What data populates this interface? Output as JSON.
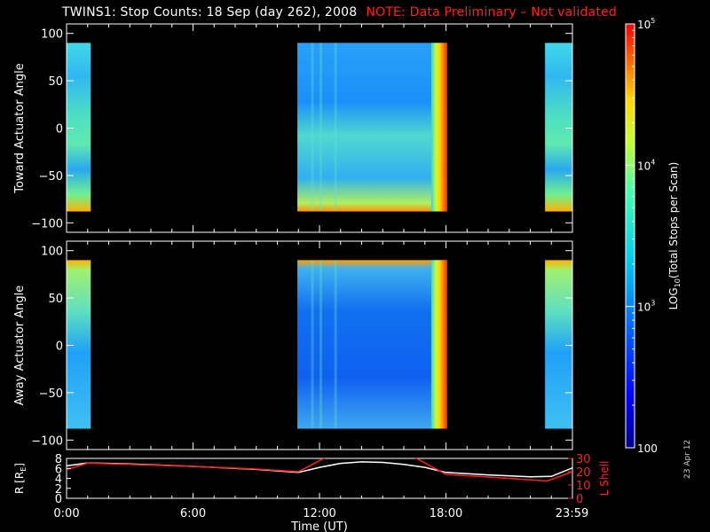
{
  "title": {
    "main": "TWINS1: Stop Counts: 18 Sep (day 262), 2008",
    "note": "NOTE: Data Preliminary – Not validated"
  },
  "side_date": "23 Apr 12",
  "colors": {
    "background": "#000000",
    "axes": "#ffffff",
    "note": "#ff2020",
    "r_line": "#ffffff",
    "lshell_line": "#ff2020"
  },
  "chart_data": [
    {
      "type": "heatmap",
      "panel": "toward",
      "ylabel": "Toward Actuator Angle",
      "ylim": [
        -110,
        110
      ],
      "yticks": [
        100,
        50,
        0,
        -50,
        -100
      ],
      "xlim": [
        0,
        24
      ],
      "angle_range": [
        -88,
        90
      ],
      "data_blocks": [
        {
          "t0": 0.0,
          "t1": 1.15
        },
        {
          "t0": 10.95,
          "t1": 18.05
        },
        {
          "t0": 22.7,
          "t1": 24.0
        }
      ],
      "color_scale": "log",
      "color_range": [
        100,
        100000
      ]
    },
    {
      "type": "heatmap",
      "panel": "away",
      "ylabel": "Away Actuator Angle",
      "ylim": [
        -110,
        110
      ],
      "yticks": [
        100,
        50,
        0,
        -50,
        -100
      ],
      "xlim": [
        0,
        24
      ],
      "angle_range": [
        -88,
        90
      ],
      "data_blocks": [
        {
          "t0": 0.0,
          "t1": 1.15
        },
        {
          "t0": 10.95,
          "t1": 18.05
        },
        {
          "t0": 22.7,
          "t1": 24.0
        }
      ],
      "color_scale": "log",
      "color_range": [
        100,
        100000
      ]
    },
    {
      "type": "line",
      "panel": "orbit",
      "xlabel": "Time (UT)",
      "xticks": [
        {
          "t": 0,
          "label": "0:00"
        },
        {
          "t": 6,
          "label": "6:00"
        },
        {
          "t": 12,
          "label": "12:00"
        },
        {
          "t": 18,
          "label": "18:00"
        },
        {
          "t": 23.98,
          "label": "23:59"
        }
      ],
      "ylabel_left": "R [R",
      "ylabel_left_sub": "E",
      "ylabel_left_end": "]",
      "ylim_left": [
        0,
        8
      ],
      "yticks_left": [
        0,
        2,
        4,
        6,
        8
      ],
      "ylabel_right": "L Shell",
      "ylim_right": [
        0,
        30
      ],
      "yticks_right": [
        0,
        10,
        20,
        30
      ],
      "series": [
        {
          "axis": "left",
          "x": [
            0,
            1,
            3,
            6,
            9,
            11,
            12,
            13,
            14,
            15,
            16,
            17,
            18,
            20,
            22,
            23,
            24
          ],
          "values": [
            6.5,
            7.1,
            6.9,
            6.4,
            5.8,
            5.2,
            6.2,
            7.0,
            7.3,
            7.2,
            6.8,
            6.2,
            5.2,
            4.7,
            4.3,
            4.4,
            6.1
          ]
        },
        {
          "axis": "right",
          "x": [
            0,
            1,
            3,
            6,
            9,
            11,
            12.2,
            12.45,
            16.3,
            16.6,
            18.0,
            20,
            22.8,
            24
          ],
          "values": [
            21.5,
            26.5,
            25.5,
            24.0,
            22.0,
            20.0,
            30.0,
            32.0,
            32.0,
            30.0,
            18.0,
            16.0,
            13.0,
            20.0
          ]
        }
      ]
    },
    {
      "type": "colorbar",
      "ylabel": "LOG",
      "ylabel_sub": "10",
      "ylabel_end": "(Total Stops per Scan)",
      "range": [
        100,
        100000
      ],
      "tick_labels": [
        {
          "value": 100000,
          "base": "10",
          "exp": "5"
        },
        {
          "value": 10000,
          "base": "10",
          "exp": "4"
        },
        {
          "value": 1000,
          "base": "10",
          "exp": "3"
        },
        {
          "value": 100,
          "base": "100",
          "exp": ""
        }
      ]
    }
  ]
}
